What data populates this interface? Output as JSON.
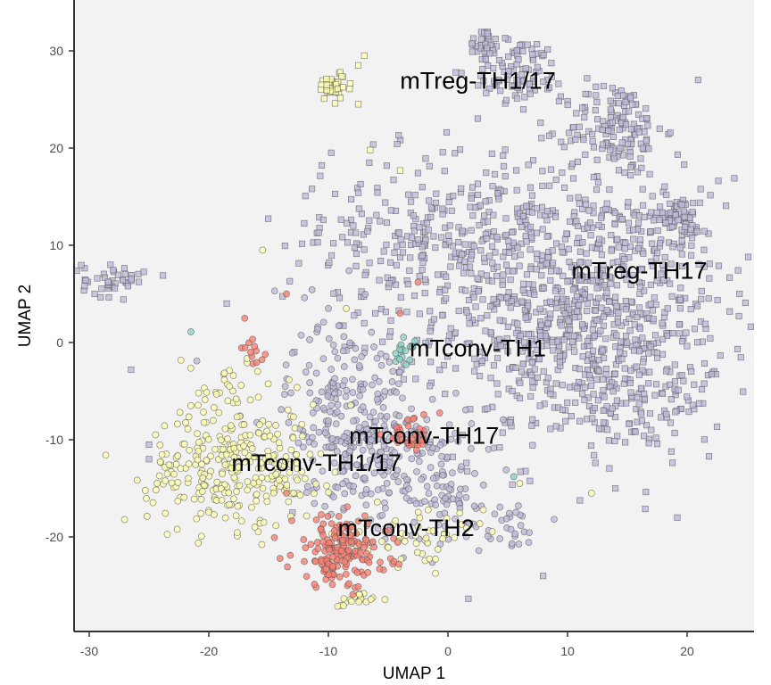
{
  "chart_data": {
    "type": "scatter",
    "title": "",
    "xlabel": "UMAP 1",
    "ylabel": "UMAP 2",
    "xlim": [
      -31,
      26
    ],
    "ylim": [
      -30.5,
      35
    ],
    "x_ticks": [
      -30,
      -20,
      -10,
      0,
      10,
      20
    ],
    "y_ticks": [
      -20,
      -10,
      0,
      10,
      20,
      30
    ],
    "x_tick_labels": [
      "-30",
      "-20",
      "-10",
      "0",
      "10",
      "20"
    ],
    "y_tick_labels": [
      "-20",
      "-10",
      "0",
      "10",
      "20",
      "30"
    ],
    "grid": false,
    "panel_background": "#f2f2f2",
    "legend": "none",
    "series": [
      {
        "color": "#bebada",
        "shape": "square",
        "clusters": [
          {
            "cx": 11,
            "cy": 3,
            "sx": 6,
            "sy": 7,
            "n": 900
          },
          {
            "cx": 14,
            "cy": 22,
            "sx": 2,
            "sy": 2.5,
            "n": 140
          },
          {
            "cx": 6,
            "cy": 28,
            "sx": 2,
            "sy": 1.6,
            "n": 90
          },
          {
            "cx": 3,
            "cy": 31,
            "sx": 0.6,
            "sy": 0.8,
            "n": 25
          },
          {
            "cx": 19,
            "cy": 13,
            "sx": 1.5,
            "sy": 1.4,
            "n": 70
          },
          {
            "cx": -28,
            "cy": 6.5,
            "sx": 1.3,
            "sy": 0.9,
            "n": 45
          },
          {
            "cx": -5,
            "cy": 10,
            "sx": 4.5,
            "sy": 4.5,
            "n": 160
          },
          {
            "cx": 4,
            "cy": 12,
            "sx": 4,
            "sy": 5,
            "n": 150
          },
          {
            "cx": 17,
            "cy": -5,
            "sx": 3,
            "sy": 3,
            "n": 80
          }
        ],
        "sparse_points": [
          [
            -13,
            -17.5
          ],
          [
            -25,
            -10.5
          ],
          [
            -25,
            -12
          ],
          [
            -26.5,
            -2.8
          ],
          [
            -32.5,
            13
          ],
          [
            -18.5,
            4
          ],
          [
            13,
            -7
          ],
          [
            14,
            -15
          ],
          [
            17,
            -9
          ]
        ]
      },
      {
        "color": "#bebada",
        "shape": "circle",
        "clusters": [
          {
            "cx": -8.5,
            "cy": -7,
            "sx": 2.5,
            "sy": 5,
            "n": 220
          },
          {
            "cx": -4,
            "cy": -12,
            "sx": 3,
            "sy": 3.5,
            "n": 140
          },
          {
            "cx": 0,
            "cy": -16,
            "sx": 2,
            "sy": 2.5,
            "n": 60
          },
          {
            "cx": 5,
            "cy": -19,
            "sx": 1.4,
            "sy": 1.4,
            "n": 25
          }
        ],
        "sparse_points": [
          [
            -21,
            -1.9
          ],
          [
            -10,
            3.5
          ],
          [
            -12,
            4.6
          ],
          [
            -14.5,
            5.3
          ]
        ]
      },
      {
        "color": "#ffffb3",
        "shape": "circle",
        "clusters": [
          {
            "cx": -19,
            "cy": -13,
            "sx": 3,
            "sy": 3,
            "n": 220
          },
          {
            "cx": -14,
            "cy": -13,
            "sx": 2,
            "sy": 3,
            "n": 70
          },
          {
            "cx": -18,
            "cy": -5,
            "sx": 2,
            "sy": 2,
            "n": 35
          },
          {
            "cx": -2,
            "cy": -20,
            "sx": 2.5,
            "sy": 1.5,
            "n": 50
          },
          {
            "cx": -8,
            "cy": -26.5,
            "sx": 0.9,
            "sy": 0.4,
            "n": 20
          }
        ],
        "sparse_points": [
          [
            -15.5,
            9.5
          ],
          [
            -8.5,
            3.5
          ],
          [
            -21.5,
            -6.5
          ],
          [
            6,
            -14.5
          ],
          [
            12,
            -15.5
          ]
        ]
      },
      {
        "color": "#ffffb3",
        "shape": "square",
        "clusters": [
          {
            "cx": -9.5,
            "cy": 26.3,
            "sx": 0.8,
            "sy": 0.7,
            "n": 40
          }
        ],
        "sparse_points": [
          [
            -7.5,
            28.5
          ],
          [
            -7.5,
            24.5
          ],
          [
            -7,
            29.5
          ],
          [
            -6.5,
            19.8
          ],
          [
            -4,
            17.7
          ]
        ]
      },
      {
        "color": "#fb8072",
        "shape": "circle",
        "clusters": [
          {
            "cx": -9,
            "cy": -21.5,
            "sx": 2,
            "sy": 1.8,
            "n": 170
          },
          {
            "cx": -3,
            "cy": -9.5,
            "sx": 1.2,
            "sy": 1,
            "n": 35
          },
          {
            "cx": -16,
            "cy": -0.8,
            "sx": 0.6,
            "sy": 0.8,
            "n": 12
          }
        ],
        "sparse_points": [
          [
            -13.5,
            5
          ],
          [
            -17,
            2.5
          ],
          [
            -2.5,
            6.2
          ],
          [
            -4,
            3
          ],
          [
            -13.5,
            -15.5
          ]
        ]
      },
      {
        "color": "#8dd3c7",
        "shape": "circle",
        "clusters": [
          {
            "cx": -3.8,
            "cy": -1,
            "sx": 0.5,
            "sy": 0.6,
            "n": 18
          }
        ],
        "sparse_points": [
          [
            -21.5,
            1.1
          ],
          [
            5.5,
            -13.8
          ]
        ]
      }
    ],
    "annotations": [
      {
        "text": "mTreg-TH1/17",
        "x": 2.5,
        "y": 27
      },
      {
        "text": "mTreg-TH17",
        "x": 16,
        "y": 7.5
      },
      {
        "text": "mTconv-TH1",
        "x": 2.5,
        "y": -0.5
      },
      {
        "text": "mTconv-TH17",
        "x": -2,
        "y": -9.5
      },
      {
        "text": "mTconv-TH1/17",
        "x": -11,
        "y": -12.3
      },
      {
        "text": "mTconv-TH2",
        "x": -3.5,
        "y": -19
      }
    ]
  }
}
